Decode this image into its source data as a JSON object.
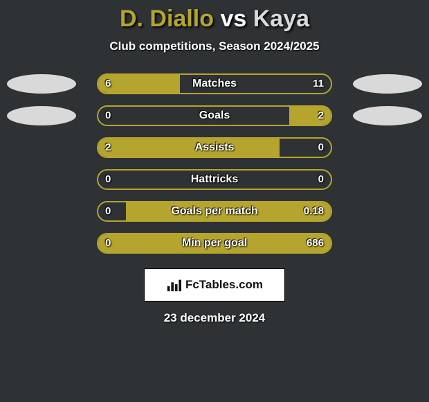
{
  "title": {
    "segments": [
      {
        "text": "D. Diallo",
        "color": "#b5a52e"
      },
      {
        "text": " vs ",
        "color": "#ffffff"
      },
      {
        "text": "Kaya",
        "color": "#d9d9d9"
      }
    ]
  },
  "subtitle": "Club competitions, Season 2024/2025",
  "colors": {
    "player1": "#b5a52e",
    "player2": "#d9d9d9",
    "bar_border": "#b5a52e",
    "background": "#2e3234"
  },
  "ovals": {
    "show_on_rows": [
      0,
      1
    ],
    "left_color": "#d9d9d9",
    "right_color": "#d9d9d9"
  },
  "stats": [
    {
      "metric": "Matches",
      "left_label": "6",
      "right_label": "11",
      "left_pct": 35,
      "right_pct": 65,
      "fill_side": "left",
      "fill_color": "#b5a52e"
    },
    {
      "metric": "Goals",
      "left_label": "0",
      "right_label": "2",
      "left_pct": 0,
      "right_pct": 18,
      "fill_side": "right",
      "fill_color": "#b5a52e"
    },
    {
      "metric": "Assists",
      "left_label": "2",
      "right_label": "0",
      "left_pct": 78,
      "right_pct": 0,
      "fill_side": "left",
      "fill_color": "#b5a52e"
    },
    {
      "metric": "Hattricks",
      "left_label": "0",
      "right_label": "0",
      "left_pct": 0,
      "right_pct": 0,
      "fill_side": "left",
      "fill_color": "#b5a52e"
    },
    {
      "metric": "Goals per match",
      "left_label": "0",
      "right_label": "0.18",
      "left_pct": 0,
      "right_pct": 88,
      "fill_side": "right",
      "fill_color": "#b5a52e"
    },
    {
      "metric": "Min per goal",
      "left_label": "0",
      "right_label": "686",
      "left_pct": 0,
      "right_pct": 100,
      "fill_side": "right",
      "fill_color": "#b5a52e"
    }
  ],
  "brand": "FcTables.com",
  "date": "23 december 2024"
}
